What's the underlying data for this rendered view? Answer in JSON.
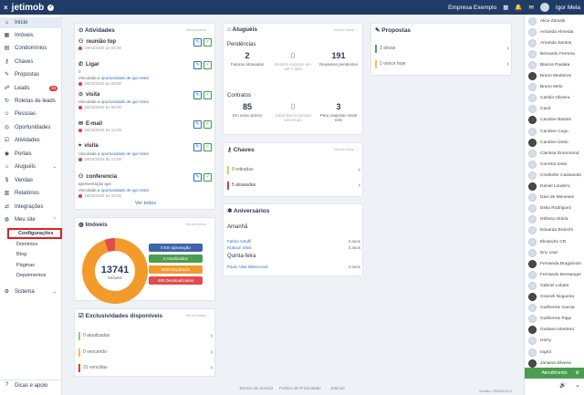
{
  "topbar": {
    "close_icon": "×",
    "logo": "jetimob",
    "logo_badge": "✓",
    "company": "Empresa Exemplo",
    "user_name": "Igor Mela"
  },
  "sidebar": {
    "items": [
      {
        "label": "Início",
        "icon": "home-icon",
        "glyph": "⌂"
      },
      {
        "label": "Imóveis",
        "icon": "building-icon",
        "glyph": "▦"
      },
      {
        "label": "Condomínios",
        "icon": "condo-icon",
        "glyph": "▤"
      },
      {
        "label": "Chaves",
        "icon": "key-icon",
        "glyph": "⚷"
      },
      {
        "label": "Propostas",
        "icon": "proposal-icon",
        "glyph": "✎"
      },
      {
        "label": "Leads",
        "icon": "leads-icon",
        "glyph": "☍",
        "badge": "33"
      },
      {
        "label": "Roletas de leads",
        "icon": "roulette-icon",
        "glyph": "↻"
      },
      {
        "label": "Pessoas",
        "icon": "people-icon",
        "glyph": "☺"
      },
      {
        "label": "Oportunidades",
        "icon": "opportunity-icon",
        "glyph": "◎"
      },
      {
        "label": "Atividades",
        "icon": "activity-icon",
        "glyph": "☑"
      },
      {
        "label": "Portais",
        "icon": "portal-icon",
        "glyph": "◉"
      },
      {
        "label": "Aluguéis",
        "icon": "rent-icon",
        "glyph": "⌂",
        "chevron": "⌄"
      },
      {
        "label": "Vendas",
        "icon": "sales-icon",
        "glyph": "$"
      },
      {
        "label": "Relatórios",
        "icon": "report-icon",
        "glyph": "▥"
      },
      {
        "label": "Integrações",
        "icon": "integration-icon",
        "glyph": "⇄"
      },
      {
        "label": "Meu site",
        "icon": "globe-icon",
        "glyph": "◍",
        "chevron": "⌃"
      }
    ],
    "subitems": [
      "Configurações",
      "Domínios",
      "Blog",
      "Páginas",
      "Depoimentos"
    ],
    "sistema": {
      "label": "Sistema",
      "glyph": "⚙",
      "chevron": "⌄"
    },
    "help": {
      "label": "Dicas e apoio",
      "glyph": "?"
    }
  },
  "atividades": {
    "title": "Atividades",
    "meta": "Vendo todos ⋮",
    "items": [
      {
        "name": "reunião top",
        "icon": "meeting-icon",
        "glyph": "⚇",
        "lines": [],
        "date": "19/03/2025 às 02:00"
      },
      {
        "name": "Ligar",
        "icon": "phone-icon",
        "glyph": "✆",
        "lines": [
          "0"
        ],
        "link_prefix": "Vinculada a ",
        "link_text": "oportunidade",
        "link_mid": " de ",
        "link_person": "igor teste",
        "date": "19/03/2025 às 09:00"
      },
      {
        "name": "visita",
        "icon": "visit-icon",
        "glyph": "⊙",
        "lines": [],
        "link_prefix": "Vinculada a ",
        "link_text": "oportunidade",
        "link_mid": " de ",
        "link_person": "igor teste",
        "date": "19/03/2025 às 09:00"
      },
      {
        "name": "E-mail",
        "icon": "email-icon",
        "glyph": "✉",
        "lines": [],
        "date": "19/03/2025 às 14:00"
      },
      {
        "name": "visita",
        "icon": "location-icon",
        "glyph": "⌖",
        "lines": [],
        "link_prefix": "Vinculada a ",
        "link_text": "oportunidade",
        "link_mid": " de ",
        "link_person": "igor teste",
        "date": "19/03/2025 às 17:00"
      },
      {
        "name": "conferencia",
        "icon": "meeting-icon",
        "glyph": "⚇",
        "lines": [
          "apresentação igor"
        ],
        "link_prefix": "Vinculada a ",
        "link_text": "oportunidade",
        "link_mid": " de ",
        "link_person": "igor teste",
        "date": "19/03/2025 às 18:00"
      }
    ],
    "see_all": "Ver todos",
    "edit_glyph": "✎",
    "check_glyph": "✓"
  },
  "alugueis": {
    "title": "Aluguéis",
    "meta": "Vendo todos ⋮",
    "pendencias_label": "Pendências",
    "pendencias": [
      {
        "num": "2",
        "label": "Faturas atrasadas",
        "light": false
      },
      {
        "num": "0",
        "label": "Boletos expiram em até 7 dias",
        "light": true
      },
      {
        "num": "191",
        "label": "Repasses pendentes",
        "light": false
      }
    ],
    "contratos_label": "Contratos",
    "contratos": [
      {
        "num": "85",
        "label": "Em aviso prévio",
        "light": false
      },
      {
        "num": "0",
        "label": "Garantias locatícias vencendo",
        "light": true
      },
      {
        "num": "3",
        "label": "Para reajustar neste mês",
        "light": false
      }
    ]
  },
  "chaves": {
    "title": "Chaves",
    "meta": "Vendo todos ⋮",
    "rows": [
      {
        "label": "0 retiradas",
        "color": "#f2c15a",
        "light": true
      },
      {
        "label": "5 atrasadas",
        "color": "#e03b3b",
        "light": false
      }
    ]
  },
  "propostas": {
    "title": "Propostas",
    "rows": [
      {
        "label": "2 ativas",
        "color": "#5a9c5e"
      },
      {
        "label": "1 vence hoje",
        "color": "#f2c15a"
      }
    ]
  },
  "imoveis": {
    "title": "Imóveis",
    "meta": "Vendo todos ⋮",
    "total": "13741",
    "total_label": "Imóveis",
    "legend": [
      {
        "label": "0 Em aprovação",
        "color": "#3f65a8"
      },
      {
        "label": "0 Atualizados",
        "color": "#4b9d4f"
      },
      {
        "label": "8820 Expirando",
        "color": "#f39a2d"
      },
      {
        "label": "490 Desatualizados",
        "color": "#e24b4b"
      }
    ]
  },
  "chart_data": {
    "type": "pie",
    "categories": [
      "Em aprovação",
      "Atualizados",
      "Expirando",
      "Desatualizados"
    ],
    "values": [
      0,
      0,
      8820,
      490
    ],
    "colors": [
      "#3f65a8",
      "#4b9d4f",
      "#f39a2d",
      "#e24b4b"
    ]
  },
  "exclusividades": {
    "title": "Exclusividades disponíveis",
    "meta": "Vendo todos ⋮",
    "rows": [
      {
        "label": "0 atualizadas",
        "color": "#8fc98f"
      },
      {
        "label": "0 vencendo",
        "color": "#f2c15a"
      },
      {
        "label": "31 vencidas",
        "color": "#e03b3b"
      }
    ]
  },
  "aniversarios": {
    "title": "Aniversários",
    "amanha_label": "Amanhã",
    "amanha": [
      {
        "name": "Fabrio Antuffi",
        "yrs": "3 anos"
      },
      {
        "name": "Robson Silva",
        "yrs": "3 anos"
      }
    ],
    "quinta_label": "Quinta-feira",
    "quinta": [
      {
        "name": "Paulo Vitor Bittencourt",
        "yrs": "3 anos"
      }
    ]
  },
  "footer": {
    "links": [
      "Termos de Serviço",
      "Política de Privacidade",
      "Jetimob"
    ],
    "version": "Versão: 20250414-0"
  },
  "users": [
    {
      "name": "Alice Zdrazik",
      "photo": false
    },
    {
      "name": "Amanda Almeida",
      "photo": false
    },
    {
      "name": "Amanda Santos",
      "photo": false
    },
    {
      "name": "Bernardo Ferreira",
      "photo": false
    },
    {
      "name": "Bianca Paulata",
      "photo": false
    },
    {
      "name": "Bruno Medeiros",
      "photo": true
    },
    {
      "name": "Bruno Melo",
      "photo": false
    },
    {
      "name": "Camila Oliveira",
      "photo": false
    },
    {
      "name": "Carol",
      "photo": false
    },
    {
      "name": "Caroline Bastos",
      "photo": true
    },
    {
      "name": "Caroline Cogo",
      "photo": false
    },
    {
      "name": "Caroline Dotto",
      "photo": true
    },
    {
      "name": "Clarissa Drummond",
      "photo": false
    },
    {
      "name": "Corretor teste",
      "photo": false
    },
    {
      "name": "Cristhofer Cassanotti",
      "photo": false
    },
    {
      "name": "Daniel Londero",
      "photo": true
    },
    {
      "name": "Davi de Meneses",
      "photo": false
    },
    {
      "name": "Delia Rodriguez",
      "photo": false
    },
    {
      "name": "Débora Vitória",
      "photo": false
    },
    {
      "name": "Eduarda Branchi",
      "photo": false
    },
    {
      "name": "Elizandro CR",
      "photo": false
    },
    {
      "name": "Eric Leal",
      "photo": false
    },
    {
      "name": "Fernanda Bragamolo",
      "photo": true
    },
    {
      "name": "Fernando Bensanger",
      "photo": false
    },
    {
      "name": "Gabriel Lobato",
      "photo": false
    },
    {
      "name": "Gracieli Nogueira",
      "photo": true
    },
    {
      "name": "Guilherme Garcia",
      "photo": false
    },
    {
      "name": "Guilherme Pippi",
      "photo": false
    },
    {
      "name": "Gustavo Martinez",
      "photo": true
    },
    {
      "name": "Harry",
      "photo": false
    },
    {
      "name": "Ingrid",
      "photo": false
    },
    {
      "name": "Janaina Silveira",
      "photo": true
    }
  ],
  "atendimento": {
    "label": "Atendimento",
    "gear": "⚙",
    "sound": "🔊",
    "chevron": "⌄"
  }
}
